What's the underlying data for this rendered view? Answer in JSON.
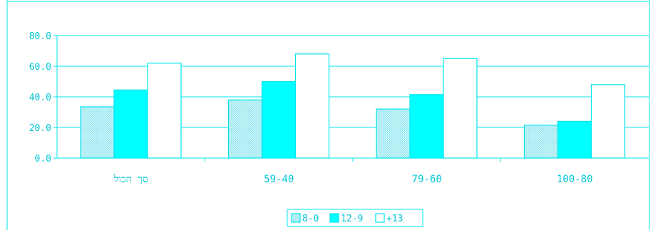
{
  "chart_data": {
    "type": "bar",
    "categories": [
      "סך הכול",
      "59-40",
      "79-60",
      "100-80"
    ],
    "series": [
      {
        "name": "8-0",
        "values": [
          33.5,
          38.0,
          32.0,
          21.5
        ],
        "fill": "pattern"
      },
      {
        "name": "12-9",
        "values": [
          44.5,
          50.0,
          41.5,
          24.0
        ],
        "fill": "#00ffff"
      },
      {
        "name": "+13",
        "values": [
          62.0,
          68.0,
          65.0,
          48.0
        ],
        "fill": "#ffffff"
      }
    ],
    "y_ticks": [
      "0.0",
      "20.0",
      "40.0",
      "60.0",
      "80.0"
    ],
    "ylim": [
      0,
      80
    ],
    "grid": true,
    "legend_position": "bottom-center",
    "colors": {
      "accent": "#00ffff",
      "line": "#00e5ee",
      "text": "#00c8d8"
    }
  }
}
